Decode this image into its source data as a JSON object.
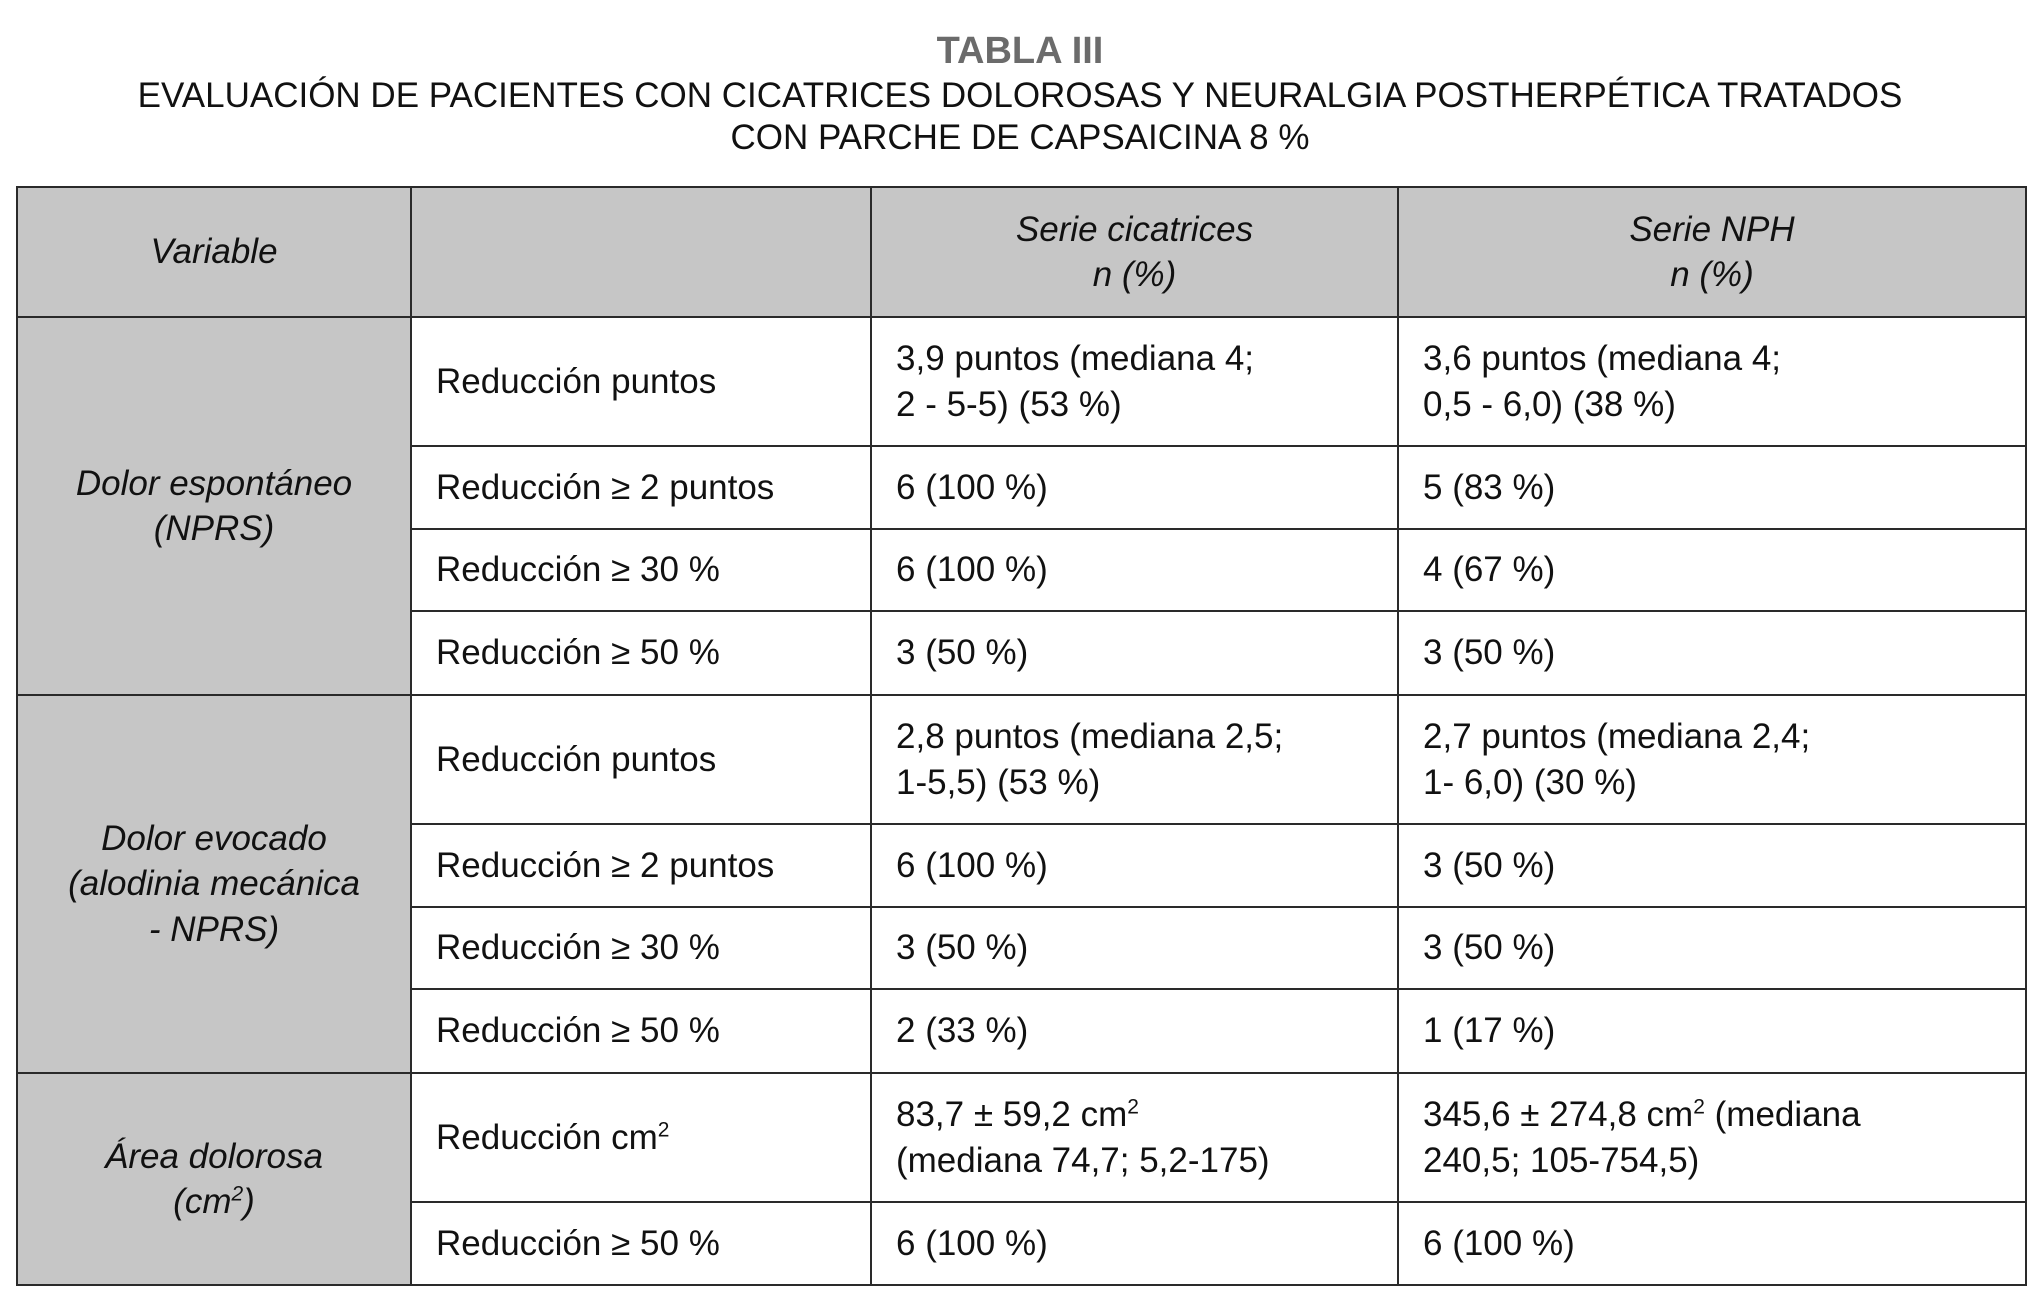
{
  "title": {
    "label": "TABLA III",
    "line1": "EVALUACIÓN DE PACIENTES CON CICATRICES DOLOROSAS Y NEURALGIA POSTHERPÉTICA TRATADOS",
    "line2": "CON PARCHE DE CAPSAICINA 8 %"
  },
  "header": {
    "variable": "Variable",
    "blank": "",
    "col1_l1": "Serie cicatrices",
    "col1_l2": "n (%)",
    "col2_l1": "Serie NPH",
    "col2_l2": "n (%)"
  },
  "groups": [
    {
      "l1": "Dolor espontáneo",
      "l2": "(NPRS)",
      "l3": "",
      "rows": [
        {
          "label": "Reducción puntos",
          "a1": "3,9 puntos (mediana 4;",
          "a2": "2 - 5-5) (53 %)",
          "b1": "3,6 puntos (mediana 4;",
          "b2": "0,5 - 6,0) (38 %)"
        },
        {
          "label": "Reducción ≥ 2 puntos",
          "a1": "6 (100 %)",
          "b1": "5 (83 %)"
        },
        {
          "label": "Reducción ≥ 30 %",
          "a1": "6 (100 %)",
          "b1": "4 (67 %)"
        },
        {
          "label": "Reducción ≥ 50 %",
          "a1": "3 (50 %)",
          "b1": "3 (50 %)"
        }
      ]
    },
    {
      "l1": "Dolor evocado",
      "l2": "(alodinia mecánica",
      "l3": "- NPRS)",
      "rows": [
        {
          "label": "Reducción puntos",
          "a1": "2,8 puntos (mediana 2,5;",
          "a2": "1-5,5) (53 %)",
          "b1": "2,7 puntos (mediana 2,4;",
          "b2": "1- 6,0) (30 %)"
        },
        {
          "label": "Reducción ≥ 2 puntos",
          "a1": "6 (100 %)",
          "b1": "3 (50 %)"
        },
        {
          "label": "Reducción ≥ 30 %",
          "a1": "3 (50 %)",
          "b1": "3 (50 %)"
        },
        {
          "label": "Reducción ≥ 50 %",
          "a1": "2 (33 %)",
          "b1": "1 (17 %)"
        }
      ]
    },
    {
      "l1": "Área dolorosa",
      "l2": "(cm",
      "sup": "2",
      "l2end": ")",
      "rows": [
        {
          "label": "Reducción cm",
          "label_sup": "2",
          "a1": "83,7 ± 59,2 cm",
          "a1_sup": "2",
          "a2": "(mediana 74,7; 5,2-175)",
          "b1": "345,6 ± 274,8 cm",
          "b1_sup": "2",
          "b1_end": " (mediana",
          "b2": "240,5; 105-754,5)"
        },
        {
          "label": "Reducción ≥ 50 %",
          "a1": "6 (100 %)",
          "b1": "6 (100 %)"
        }
      ]
    }
  ]
}
